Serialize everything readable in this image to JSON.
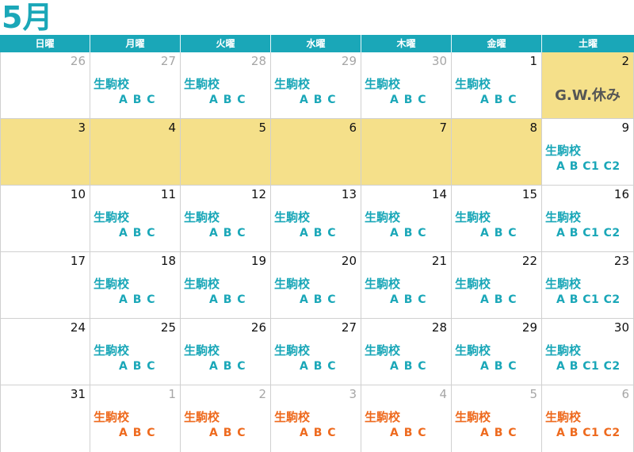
{
  "month_title": "5月",
  "weekdays": [
    "日曜",
    "月曜",
    "火曜",
    "水曜",
    "木曜",
    "金曜",
    "土曜"
  ],
  "colors": {
    "accent": "#1aa7b8",
    "next_month": "#ee6a1e",
    "holiday_bg": "#f5e08a"
  },
  "school_label": "生駒校",
  "holiday_label": "G.W.休み",
  "weeks": [
    [
      {
        "day": "26",
        "muted": true
      },
      {
        "day": "27",
        "muted": true,
        "school": "生駒校",
        "classes": "A B C"
      },
      {
        "day": "28",
        "muted": true,
        "school": "生駒校",
        "classes": "A B C"
      },
      {
        "day": "29",
        "muted": true,
        "school": "生駒校",
        "classes": "A B C"
      },
      {
        "day": "30",
        "muted": true,
        "school": "生駒校",
        "classes": "A B C"
      },
      {
        "day": "1",
        "school": "生駒校",
        "classes": "A B C"
      },
      {
        "day": "2",
        "holiday": true,
        "note": "G.W.休み"
      }
    ],
    [
      {
        "day": "3",
        "holiday": true
      },
      {
        "day": "4",
        "holiday": true
      },
      {
        "day": "5",
        "holiday": true
      },
      {
        "day": "6",
        "holiday": true
      },
      {
        "day": "7",
        "holiday": true
      },
      {
        "day": "8",
        "holiday": true
      },
      {
        "day": "9",
        "school": "生駒校",
        "classes": "A B C1 C2"
      }
    ],
    [
      {
        "day": "10"
      },
      {
        "day": "11",
        "school": "生駒校",
        "classes": "A B C"
      },
      {
        "day": "12",
        "school": "生駒校",
        "classes": "A B C"
      },
      {
        "day": "13",
        "school": "生駒校",
        "classes": "A B C"
      },
      {
        "day": "14",
        "school": "生駒校",
        "classes": "A B C"
      },
      {
        "day": "15",
        "school": "生駒校",
        "classes": "A B C"
      },
      {
        "day": "16",
        "school": "生駒校",
        "classes": "A B C1 C2"
      }
    ],
    [
      {
        "day": "17"
      },
      {
        "day": "18",
        "school": "生駒校",
        "classes": "A B C"
      },
      {
        "day": "19",
        "school": "生駒校",
        "classes": "A B C"
      },
      {
        "day": "20",
        "school": "生駒校",
        "classes": "A B C"
      },
      {
        "day": "21",
        "school": "生駒校",
        "classes": "A B C"
      },
      {
        "day": "22",
        "school": "生駒校",
        "classes": "A B C"
      },
      {
        "day": "23",
        "school": "生駒校",
        "classes": "A B C1 C2"
      }
    ],
    [
      {
        "day": "24"
      },
      {
        "day": "25",
        "school": "生駒校",
        "classes": "A B C"
      },
      {
        "day": "26",
        "school": "生駒校",
        "classes": "A B C"
      },
      {
        "day": "27",
        "school": "生駒校",
        "classes": "A B C"
      },
      {
        "day": "28",
        "school": "生駒校",
        "classes": "A B C"
      },
      {
        "day": "29",
        "school": "生駒校",
        "classes": "A B C"
      },
      {
        "day": "30",
        "school": "生駒校",
        "classes": "A B C1 C2"
      }
    ],
    [
      {
        "day": "31"
      },
      {
        "day": "1",
        "muted": true,
        "next": true,
        "school": "生駒校",
        "classes": "A B C"
      },
      {
        "day": "2",
        "muted": true,
        "next": true,
        "school": "生駒校",
        "classes": "A B C"
      },
      {
        "day": "3",
        "muted": true,
        "next": true,
        "school": "生駒校",
        "classes": "A B C"
      },
      {
        "day": "4",
        "muted": true,
        "next": true,
        "school": "生駒校",
        "classes": "A B C"
      },
      {
        "day": "5",
        "muted": true,
        "next": true,
        "school": "生駒校",
        "classes": "A B C"
      },
      {
        "day": "6",
        "muted": true,
        "next": true,
        "school": "生駒校",
        "classes": "A B C1 C2"
      }
    ]
  ]
}
